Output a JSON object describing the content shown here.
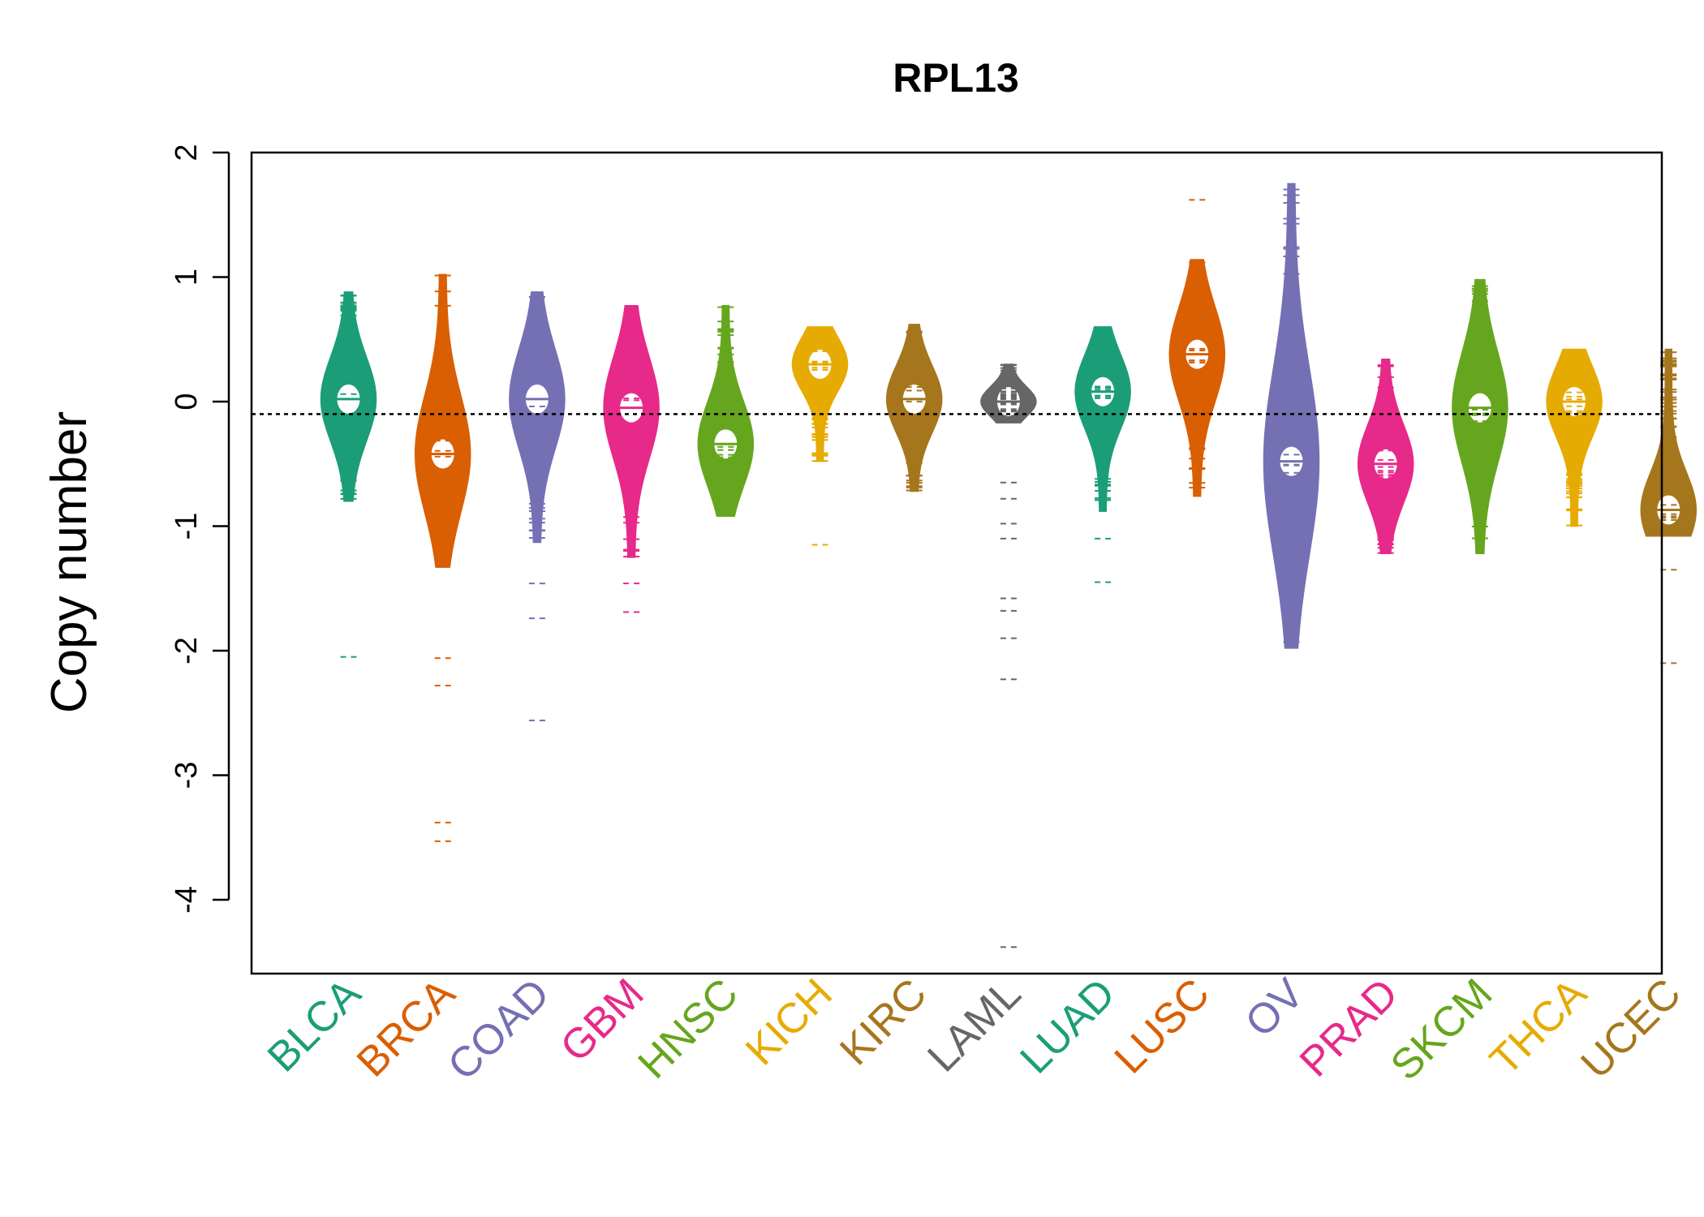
{
  "chart_data": {
    "type": "beanplot",
    "title": "RPL13",
    "xlabel": "",
    "ylabel": "Copy number",
    "ylim": [
      -4.6,
      2.0
    ],
    "yticks": [
      2,
      1,
      0,
      -1,
      -2,
      -3,
      -4
    ],
    "yticklabels": [
      "2",
      "1",
      "0",
      "-1",
      "-2",
      "-3",
      "-4"
    ],
    "reference_line": -0.1,
    "grid": false,
    "categories": [
      "BLCA",
      "BRCA",
      "COAD",
      "GBM",
      "HNSC",
      "KICH",
      "KIRC",
      "LAML",
      "LUAD",
      "LUSC",
      "OV",
      "PRAD",
      "SKCM",
      "THCA",
      "UCEC"
    ],
    "colors": [
      "#1B9E77",
      "#D95F02",
      "#7570B3",
      "#E7298A",
      "#66A61E",
      "#E6AB02",
      "#A6761D",
      "#666666",
      "#1B9E77",
      "#D95F02",
      "#7570B3",
      "#E7298A",
      "#66A61E",
      "#E6AB02",
      "#A6761D"
    ],
    "series": [
      {
        "name": "BLCA",
        "mean": 0.02,
        "range": [
          -0.8,
          0.88
        ],
        "outliers": [
          -2.05
        ]
      },
      {
        "name": "BRCA",
        "mean": -0.42,
        "range": [
          -1.33,
          1.02
        ],
        "outliers": [
          -2.06,
          -2.28,
          -3.38,
          -3.53
        ]
      },
      {
        "name": "COAD",
        "mean": 0.02,
        "range": [
          -1.13,
          0.88
        ],
        "outliers": [
          -1.46,
          -1.74,
          -2.56
        ]
      },
      {
        "name": "GBM",
        "mean": -0.05,
        "range": [
          -1.25,
          0.77
        ],
        "outliers": [
          -1.46,
          -1.69
        ]
      },
      {
        "name": "HNSC",
        "mean": -0.34,
        "range": [
          -0.92,
          0.77
        ],
        "outliers": []
      },
      {
        "name": "KICH",
        "mean": 0.3,
        "range": [
          -0.48,
          0.6
        ],
        "outliers": [
          -1.15
        ]
      },
      {
        "name": "KIRC",
        "mean": 0.02,
        "range": [
          -0.72,
          0.62
        ],
        "outliers": []
      },
      {
        "name": "LAML",
        "mean": 0.0,
        "range": [
          -0.17,
          0.3
        ],
        "outliers": [
          -0.65,
          -0.78,
          -0.98,
          -1.1,
          -1.58,
          -1.68,
          -1.9,
          -2.23,
          -4.38
        ]
      },
      {
        "name": "LUAD",
        "mean": 0.08,
        "range": [
          -0.88,
          0.6
        ],
        "outliers": [
          -1.1,
          -1.45
        ]
      },
      {
        "name": "LUSC",
        "mean": 0.38,
        "range": [
          -0.76,
          1.14
        ],
        "outliers": [
          1.62
        ]
      },
      {
        "name": "OV",
        "mean": -0.48,
        "range": [
          -1.98,
          1.75
        ],
        "outliers": []
      },
      {
        "name": "PRAD",
        "mean": -0.5,
        "range": [
          -1.22,
          0.34
        ],
        "outliers": []
      },
      {
        "name": "SKCM",
        "mean": -0.05,
        "range": [
          -1.22,
          0.98
        ],
        "outliers": []
      },
      {
        "name": "THCA",
        "mean": 0.0,
        "range": [
          -1.0,
          0.42
        ],
        "outliers": []
      },
      {
        "name": "UCEC",
        "mean": -0.87,
        "range": [
          -1.08,
          0.42
        ],
        "outliers": [
          -1.35,
          -2.1
        ]
      }
    ]
  }
}
